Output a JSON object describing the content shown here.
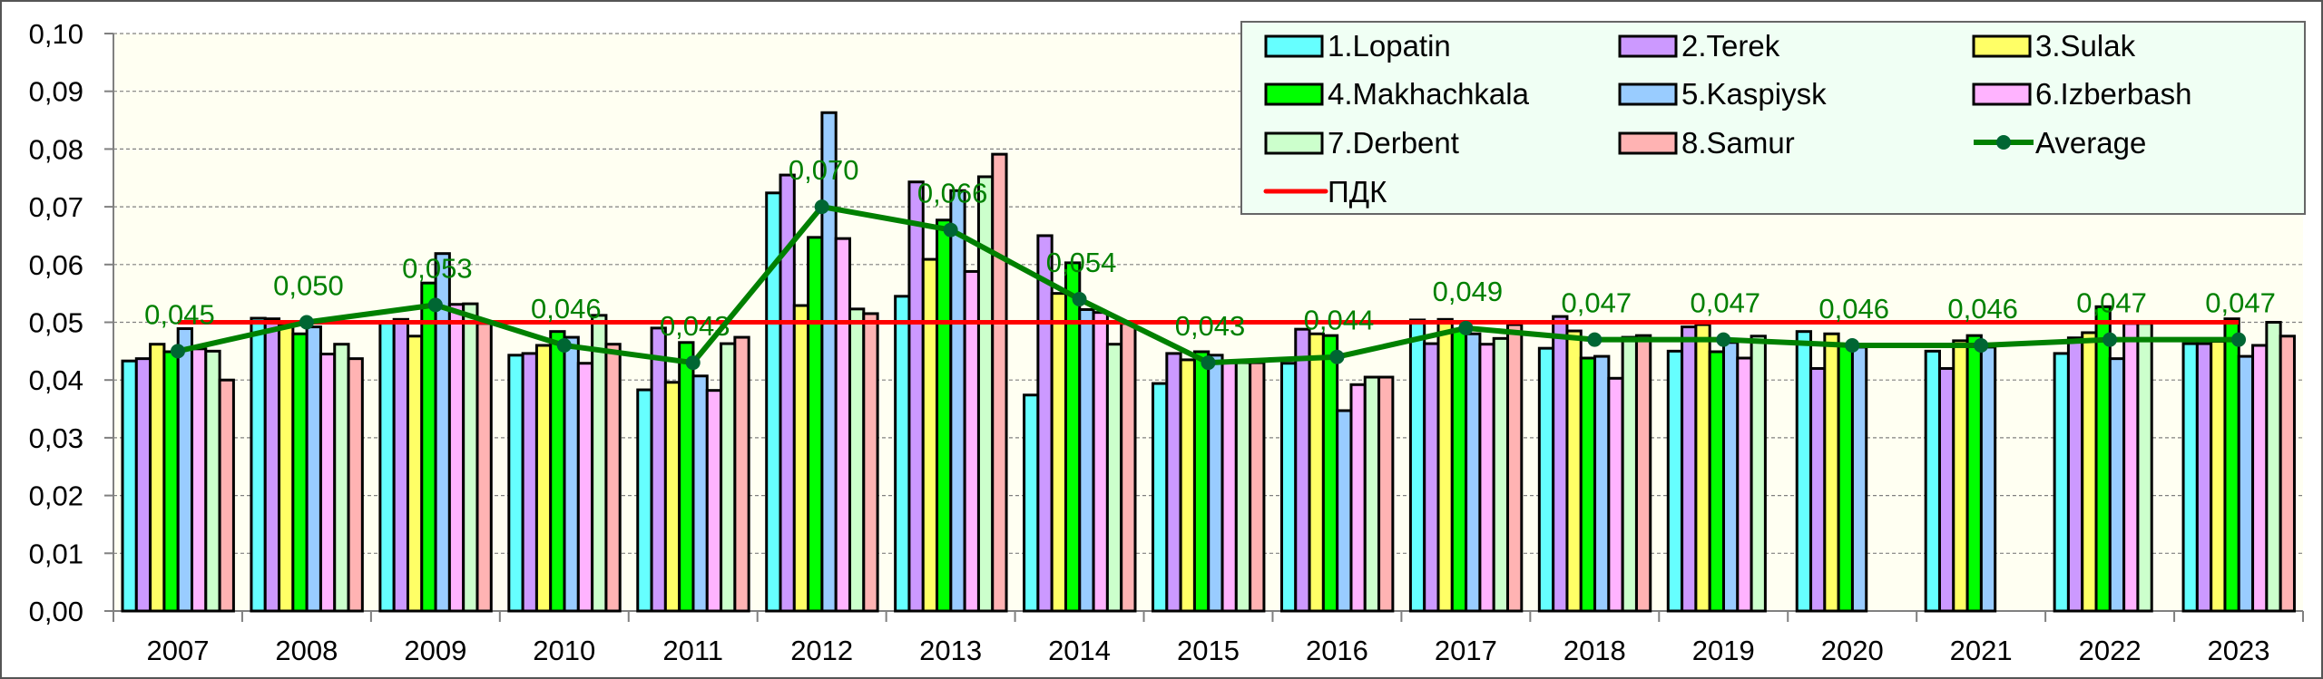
{
  "chart_data": {
    "type": "bar",
    "title": "",
    "xlabel": "",
    "ylabel": "",
    "ylim": [
      0,
      0.1
    ],
    "yticks": [
      "0,00",
      "0,01",
      "0,02",
      "0,03",
      "0,04",
      "0,05",
      "0,06",
      "0,07",
      "0,08",
      "0,09",
      "0,10"
    ],
    "ytick_values": [
      0,
      0.01,
      0.02,
      0.03,
      0.04,
      0.05,
      0.06,
      0.07,
      0.08,
      0.09,
      0.1
    ],
    "grid": "horizontal dashed",
    "legend_position": "top-right",
    "categories": [
      "2007",
      "2008",
      "2009",
      "2010",
      "2011",
      "2012",
      "2013",
      "2014",
      "2015",
      "2016",
      "2017",
      "2018",
      "2019",
      "2020",
      "2021",
      "2022",
      "2023"
    ],
    "series": [
      {
        "name": "1.Lopatin",
        "color": "#66ffff",
        "values": [
          0.0433,
          0.0507,
          0.05,
          0.0443,
          0.0383,
          0.0724,
          0.0545,
          0.0374,
          0.0394,
          0.0429,
          0.0504,
          0.0455,
          0.045,
          0.0484,
          0.045,
          0.0446,
          0.0463
        ]
      },
      {
        "name": "2.Terek",
        "color": "#cc99ff",
        "values": [
          0.0437,
          0.0506,
          0.0505,
          0.0446,
          0.049,
          0.0755,
          0.0743,
          0.065,
          0.0446,
          0.0488,
          0.0463,
          0.051,
          0.0492,
          0.042,
          0.042,
          0.0473,
          0.0463
        ]
      },
      {
        "name": "3.Sulak",
        "color": "#ffff66",
        "values": [
          0.0462,
          0.0495,
          0.0476,
          0.046,
          0.0396,
          0.0529,
          0.0609,
          0.055,
          0.0435,
          0.048,
          0.0505,
          0.0485,
          0.0496,
          0.048,
          0.0468,
          0.0482,
          0.0467
        ]
      },
      {
        "name": "4.Makhachkala",
        "color": "#00ff00",
        "values": [
          0.0449,
          0.048,
          0.0568,
          0.0484,
          0.0465,
          0.0647,
          0.0677,
          0.0603,
          0.0449,
          0.0477,
          0.0488,
          0.0438,
          0.0449,
          0.0462,
          0.0477,
          0.0527,
          0.0506
        ]
      },
      {
        "name": "5.Kaspiysk",
        "color": "#99ccff",
        "values": [
          0.0489,
          0.0492,
          0.0619,
          0.0474,
          0.0407,
          0.0863,
          0.0728,
          0.0522,
          0.0443,
          0.0347,
          0.048,
          0.0441,
          0.0465,
          0.0457,
          0.0457,
          0.0437,
          0.0441
        ]
      },
      {
        "name": "6.Izberbash",
        "color": "#ffb3ff",
        "values": [
          0.0454,
          0.0445,
          0.0531,
          0.0429,
          0.0382,
          0.0645,
          0.0588,
          0.0517,
          0.043,
          0.0392,
          0.0462,
          0.0403,
          0.0438,
          null,
          null,
          0.0498,
          0.046
        ]
      },
      {
        "name": "7.Derbent",
        "color": "#ccffcc",
        "values": [
          0.045,
          0.0462,
          0.0532,
          0.0512,
          0.0463,
          0.0523,
          0.0752,
          0.0462,
          0.043,
          0.0405,
          0.0472,
          0.0474,
          0.0476,
          null,
          null,
          0.0498,
          0.05
        ]
      },
      {
        "name": "8.Samur",
        "color": "#ffb3b3",
        "values": [
          0.04,
          0.0437,
          0.0498,
          0.0462,
          0.0474,
          0.0515,
          0.0791,
          0.0498,
          0.043,
          0.0405,
          0.0496,
          0.0477,
          null,
          null,
          null,
          null,
          0.0476
        ]
      }
    ],
    "average": {
      "name": "Average",
      "color": "#008000",
      "marker_color": "#006633",
      "values": [
        0.045,
        0.05,
        0.053,
        0.046,
        0.043,
        0.07,
        0.066,
        0.054,
        0.043,
        0.044,
        0.049,
        0.047,
        0.047,
        0.046,
        0.046,
        0.047,
        0.047
      ],
      "labels": [
        "0,045",
        "0,050",
        "0,053",
        "0,046",
        "0,043",
        "0,070",
        "0,066",
        "0,054",
        "0,043",
        "0,044",
        "0,049",
        "0,047",
        "0,047",
        "0,046",
        "0,046",
        "0,047",
        "0,047"
      ]
    },
    "threshold": {
      "name": "ПДК",
      "value": 0.05,
      "color": "#ff0000"
    },
    "legend": [
      {
        "label": "1.Lopatin",
        "kind": "bar",
        "color": "#66ffff"
      },
      {
        "label": "2.Terek",
        "kind": "bar",
        "color": "#cc99ff"
      },
      {
        "label": "3.Sulak",
        "kind": "bar",
        "color": "#ffff66"
      },
      {
        "label": "4.Makhachkala",
        "kind": "bar",
        "color": "#00ff00"
      },
      {
        "label": "5.Kaspiysk",
        "kind": "bar",
        "color": "#99ccff"
      },
      {
        "label": "6.Izberbash",
        "kind": "bar",
        "color": "#ffb3ff"
      },
      {
        "label": "7.Derbent",
        "kind": "bar",
        "color": "#ccffcc"
      },
      {
        "label": "8.Samur",
        "kind": "bar",
        "color": "#ffb3b3"
      },
      {
        "label": "Average",
        "kind": "line-marker",
        "color": "#008000"
      },
      {
        "label": "ПДК",
        "kind": "line",
        "color": "#ff0000"
      }
    ]
  },
  "colors": {
    "plot_background": "#fffff2",
    "legend_background": "#f0fff4",
    "gridline": "#808080",
    "border": "#555555"
  }
}
